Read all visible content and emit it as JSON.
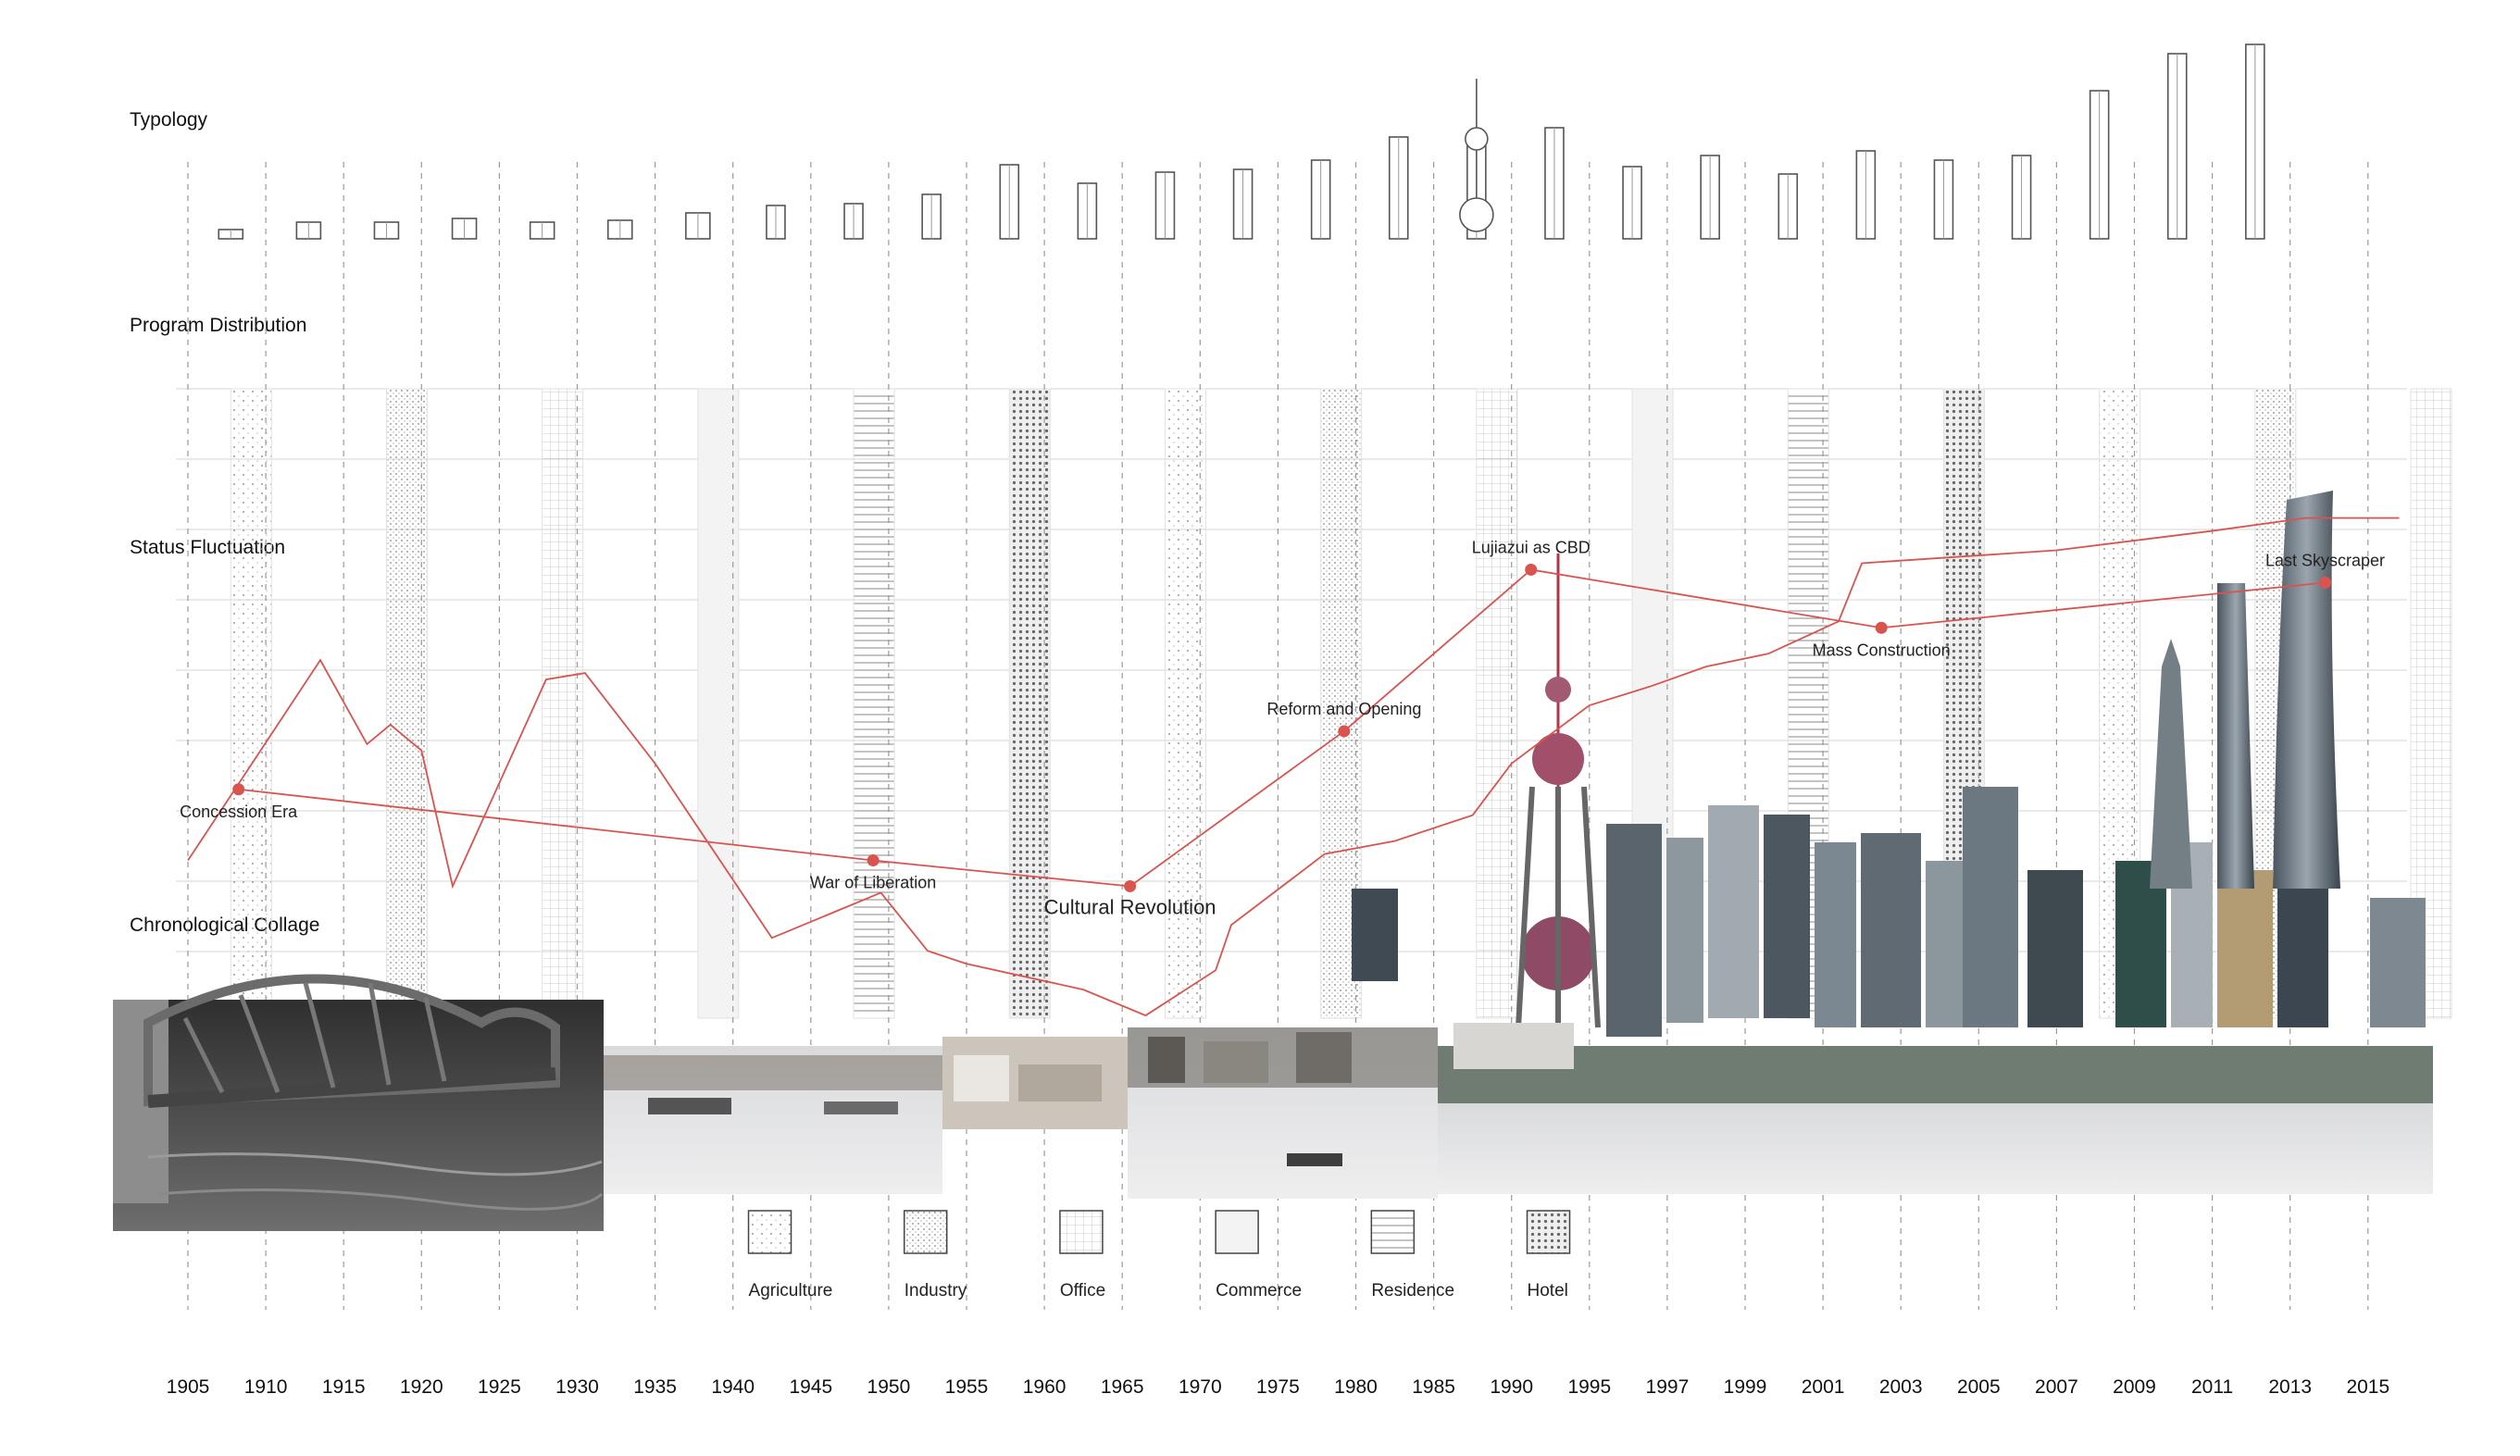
{
  "sections": {
    "typology": "Typology",
    "program": "Program Distribution",
    "status": "Status Fluctuation",
    "collage": "Chronological Collage"
  },
  "years": [
    "1905",
    "1910",
    "1915",
    "1920",
    "1925",
    "1930",
    "1935",
    "1940",
    "1945",
    "1950",
    "1955",
    "1960",
    "1965",
    "1970",
    "1975",
    "1980",
    "1985",
    "1990",
    "1995",
    "1997",
    "1999",
    "2001",
    "2003",
    "2005",
    "2007",
    "2009",
    "2011",
    "2013",
    "2015"
  ],
  "events": [
    {
      "label": "Concession Era",
      "year_index": 0.65,
      "status": 0.38,
      "style": "normal"
    },
    {
      "label": "War of Liberation",
      "year_index": 8.8,
      "status": 0.27,
      "style": "normal"
    },
    {
      "label": "Cultural Revolution",
      "year_index": 12.1,
      "status": 0.23,
      "style": "big"
    },
    {
      "label": "Reform and Opening",
      "year_index": 14.85,
      "status": 0.47,
      "style": "normal"
    },
    {
      "label": "Lujiazui as CBD",
      "year_index": 17.25,
      "status": 0.72,
      "style": "normal"
    },
    {
      "label": "Mass Construction",
      "year_index": 21.75,
      "status": 0.63,
      "style": "normal"
    },
    {
      "label": "Last Skyscraper",
      "year_index": 27.45,
      "status": 0.7,
      "style": "normal"
    }
  ],
  "legend": [
    {
      "label": "Agriculture",
      "pattern": "dots-sparse"
    },
    {
      "label": "Industry",
      "pattern": "dots-dense"
    },
    {
      "label": "Office",
      "pattern": "grid"
    },
    {
      "label": "Commerce",
      "pattern": "plain"
    },
    {
      "label": "Residence",
      "pattern": "horizontal-lines"
    },
    {
      "label": "Hotel",
      "pattern": "dots-heavy"
    }
  ],
  "colors": {
    "accent": "#d9534f",
    "grid": "#d4d4d4",
    "dash": "#9a9a9a",
    "building_stroke": "#555555"
  }
}
